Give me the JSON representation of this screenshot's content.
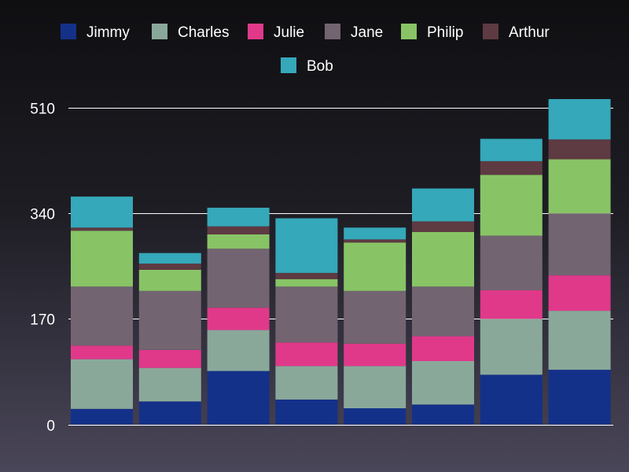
{
  "chart_data": {
    "type": "bar",
    "stacked": true,
    "categories": [
      "",
      "",
      "",
      "",
      "",
      "",
      "",
      ""
    ],
    "series": [
      {
        "name": "Jimmy",
        "color": "#14318a",
        "values": [
          25,
          37,
          86,
          40,
          26,
          32,
          80,
          88
        ]
      },
      {
        "name": "Charles",
        "color": "#8aa89a",
        "values": [
          80,
          54,
          66,
          54,
          68,
          70,
          90,
          95
        ]
      },
      {
        "name": "Julie",
        "color": "#e0398a",
        "values": [
          22,
          29,
          36,
          38,
          36,
          40,
          46,
          57
        ]
      },
      {
        "name": "Jane",
        "color": "#726470",
        "values": [
          95,
          95,
          95,
          90,
          85,
          80,
          88,
          100
        ]
      },
      {
        "name": "Philip",
        "color": "#88c466",
        "values": [
          90,
          34,
          23,
          12,
          78,
          88,
          98,
          87
        ]
      },
      {
        "name": "Arthur",
        "color": "#5e3a42",
        "values": [
          5,
          10,
          13,
          10,
          5,
          17,
          22,
          32
        ]
      },
      {
        "name": "Bob",
        "color": "#35a8ba",
        "values": [
          50,
          17,
          30,
          88,
          19,
          53,
          36,
          65
        ]
      }
    ],
    "y_ticks": [
      0,
      170,
      340,
      510
    ],
    "ylim": [
      0,
      525
    ],
    "grid": true,
    "legend_position": "top-center"
  }
}
